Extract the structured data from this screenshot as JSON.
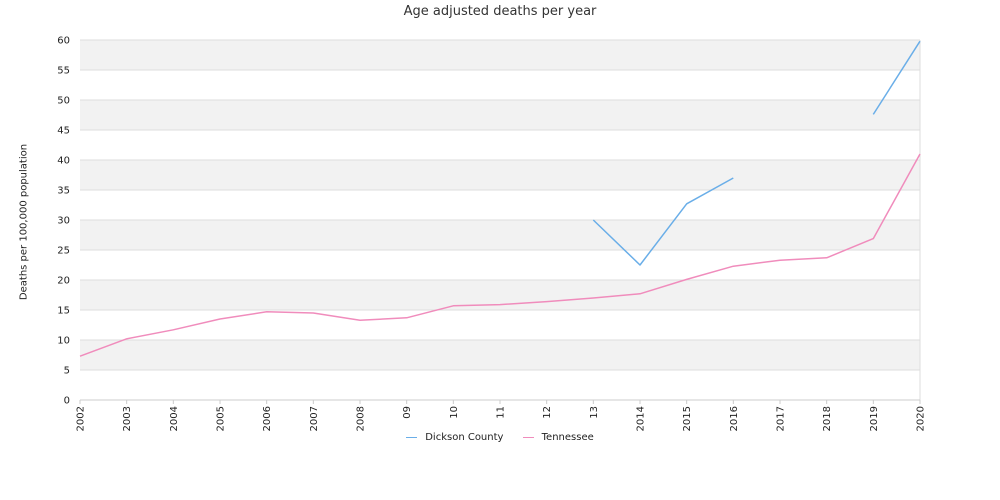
{
  "chart_data": {
    "type": "line",
    "title": "Age adjusted deaths per year",
    "xlabel": "",
    "ylabel": "Deaths per 100,000 population",
    "categories": [
      "2002",
      "2003",
      "2004",
      "2005",
      "2006",
      "2007",
      "2008",
      "09",
      "10",
      "11",
      "12",
      "13",
      "2014",
      "2015",
      "2016",
      "2017",
      "2018",
      "2019",
      "2020"
    ],
    "ylim": [
      0,
      60
    ],
    "yticks": [
      0,
      5,
      10,
      15,
      20,
      25,
      30,
      35,
      40,
      45,
      50,
      55,
      60
    ],
    "grid": true,
    "legend": "bottom",
    "series": [
      {
        "name": "Dickson County",
        "color": "#6aaee8",
        "values": [
          null,
          null,
          null,
          null,
          null,
          null,
          null,
          null,
          null,
          null,
          null,
          30.0,
          22.5,
          32.7,
          37.0,
          null,
          null,
          47.6,
          59.8
        ]
      },
      {
        "name": "Tennessee",
        "color": "#f08cbc",
        "values": [
          7.3,
          10.2,
          11.7,
          13.5,
          14.7,
          14.5,
          13.3,
          13.7,
          15.7,
          15.9,
          16.4,
          17.0,
          17.7,
          20.1,
          22.3,
          23.3,
          23.7,
          26.9,
          41.0
        ]
      }
    ]
  }
}
